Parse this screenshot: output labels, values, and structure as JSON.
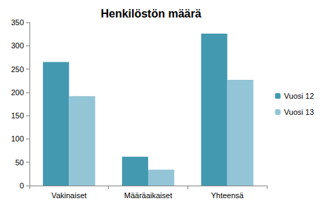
{
  "chart_data": {
    "type": "bar",
    "title": "Henkilöstön määrä",
    "categories": [
      "Vakinaiset",
      "Määräaikaiset",
      "Yhteensä"
    ],
    "series": [
      {
        "name": "Vuosi 12",
        "color": "#4299b0",
        "values": [
          265,
          62,
          326
        ]
      },
      {
        "name": "Vuosi 13",
        "color": "#93c5d6",
        "values": [
          192,
          34,
          227
        ]
      }
    ],
    "ylim": [
      0,
      350
    ],
    "yticks": [
      0,
      50,
      100,
      150,
      200,
      250,
      300,
      350
    ],
    "grid": false,
    "legend": "right"
  }
}
